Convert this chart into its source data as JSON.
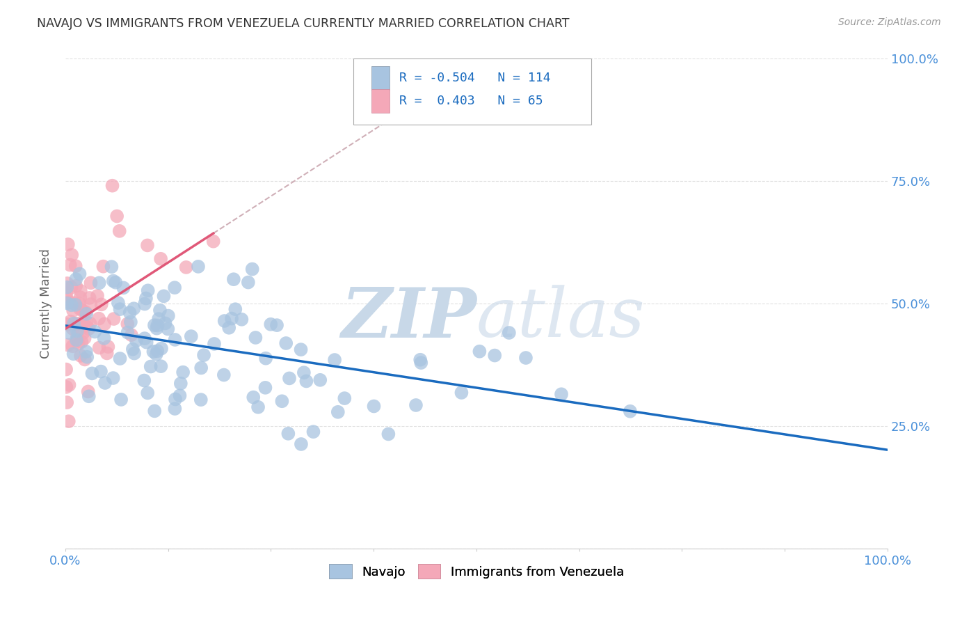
{
  "title": "NAVAJO VS IMMIGRANTS FROM VENEZUELA CURRENTLY MARRIED CORRELATION CHART",
  "source": "Source: ZipAtlas.com",
  "ylabel": "Currently Married",
  "legend_label1": "Navajo",
  "legend_label2": "Immigrants from Venezuela",
  "r1": -0.504,
  "n1": 114,
  "r2": 0.403,
  "n2": 65,
  "color1": "#a8c4e0",
  "color2": "#f4a8b8",
  "line1_color": "#1a6bbf",
  "line2_color": "#e05878",
  "dashed_line_color": "#d0b0b8",
  "background_color": "#ffffff",
  "watermark_color": "#c8d8e8",
  "title_color": "#333333",
  "axis_label_color": "#4a90d9",
  "grid_color": "#e0e0e0"
}
